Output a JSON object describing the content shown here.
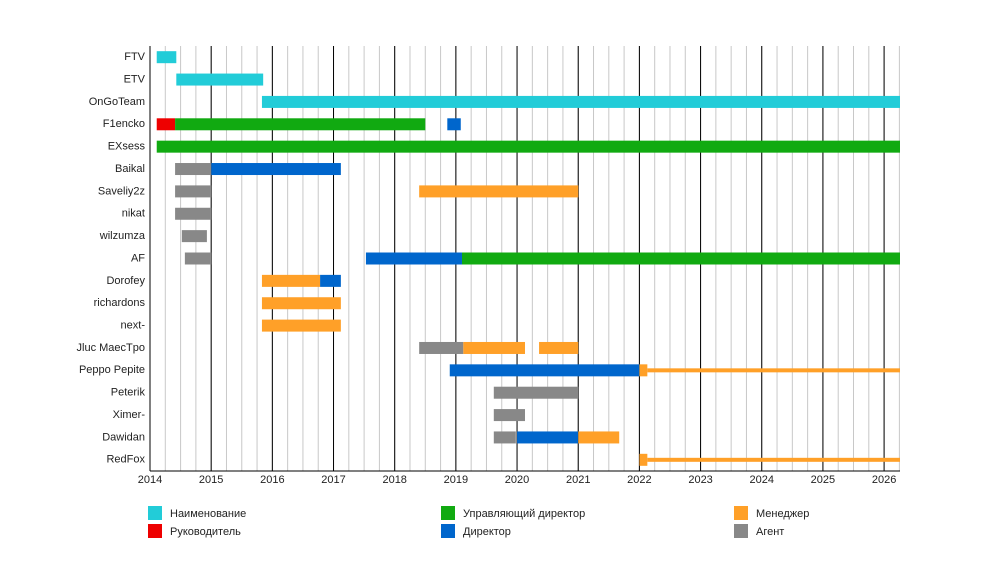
{
  "chart_data": {
    "type": "timeline",
    "categories": [
      "FTV",
      "ETV",
      "OnGoTeam",
      "F1encko",
      "EXsess",
      "Baikal",
      "Saveliy2z",
      "nikat",
      "wilzumza",
      "AF",
      "Dorofey",
      "richardons",
      "next-",
      "Jluc MaecTpo",
      "Peppo Pepite",
      "Peterik",
      "Ximer-",
      "Dawidan",
      "RedFox"
    ],
    "xlim": [
      2014,
      2026.26
    ],
    "xticks": [
      2014,
      2015,
      2016,
      2017,
      2018,
      2019,
      2020,
      2021,
      2022,
      2023,
      2024,
      2025,
      2026
    ],
    "minor_grid_step": 0.25,
    "series": [
      {
        "name": "Наименование",
        "color": "#22ccd8",
        "values": [
          [
            [
              2014.11,
              2014.43
            ]
          ],
          [
            [
              2014.43,
              2015.85
            ]
          ],
          [
            [
              2015.83,
              2026.26
            ]
          ],
          null,
          null,
          null,
          null,
          null,
          null,
          null,
          null,
          null,
          null,
          null,
          null,
          null,
          null,
          null,
          null
        ]
      },
      {
        "name": "Руководитель",
        "color": "#ee0000",
        "values": [
          null,
          null,
          null,
          [
            [
              2014.11,
              2014.41
            ]
          ],
          null,
          null,
          null,
          null,
          null,
          null,
          null,
          null,
          null,
          null,
          null,
          null,
          null,
          null,
          null
        ]
      },
      {
        "name": "Управляющий директор",
        "color": "#11aa11",
        "values": [
          null,
          null,
          null,
          [
            [
              2014.41,
              2018.5
            ]
          ],
          [
            [
              2014.11,
              2026.26
            ]
          ],
          null,
          null,
          null,
          null,
          [
            [
              2019.1,
              2026.26
            ]
          ],
          null,
          null,
          null,
          null,
          null,
          null,
          null,
          null,
          null
        ]
      },
      {
        "name": "Директор",
        "color": "#0066cc",
        "values": [
          null,
          null,
          null,
          [
            [
              2018.86,
              2019.08
            ]
          ],
          null,
          [
            [
              2015.0,
              2017.12
            ]
          ],
          null,
          null,
          null,
          [
            [
              2017.53,
              2019.1
            ]
          ],
          [
            [
              2016.78,
              2017.12
            ]
          ],
          null,
          null,
          null,
          [
            [
              2018.9,
              2022.0
            ]
          ],
          null,
          null,
          [
            [
              2020.0,
              2021.0
            ]
          ],
          null
        ]
      },
      {
        "name": "Менеджер",
        "color": "#ffa028",
        "values": [
          null,
          null,
          null,
          null,
          null,
          null,
          [
            [
              2018.4,
              2021.0
            ]
          ],
          null,
          null,
          null,
          [
            [
              2015.83,
              2016.78
            ]
          ],
          [
            [
              2015.83,
              2017.12
            ]
          ],
          [
            [
              2015.83,
              2017.12
            ]
          ],
          [
            [
              2019.12,
              2020.13
            ],
            [
              2020.36,
              2021.0
            ]
          ],
          [
            [
              2022.0,
              2022.13
            ]
          ],
          null,
          null,
          [
            [
              2021.0,
              2021.67
            ]
          ],
          [
            [
              2022.0,
              2022.13
            ]
          ]
        ],
        "thin_values": [
          null,
          null,
          null,
          null,
          null,
          null,
          null,
          null,
          null,
          null,
          null,
          null,
          null,
          null,
          [
            [
              2022.13,
              2026.26
            ]
          ],
          null,
          null,
          null,
          [
            [
              2022.13,
              2026.26
            ]
          ]
        ]
      },
      {
        "name": "Агент",
        "color": "#888888",
        "values": [
          null,
          null,
          null,
          null,
          null,
          [
            [
              2014.41,
              2015.0
            ]
          ],
          [
            [
              2014.41,
              2015.0
            ]
          ],
          [
            [
              2014.41,
              2015.0
            ]
          ],
          [
            [
              2014.52,
              2014.93
            ]
          ],
          [
            [
              2014.57,
              2015.0
            ]
          ],
          null,
          null,
          null,
          [
            [
              2018.4,
              2019.12
            ]
          ],
          null,
          [
            [
              2019.62,
              2021.0
            ]
          ],
          [
            [
              2019.62,
              2020.13
            ]
          ],
          [
            [
              2019.62,
              2019.98
            ]
          ],
          null
        ]
      }
    ]
  }
}
